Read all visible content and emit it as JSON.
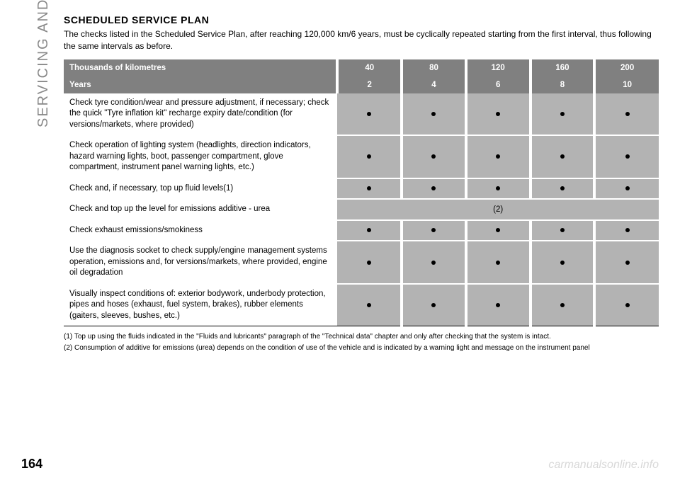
{
  "sidebar": "SERVICING AND CARE",
  "title": "SCHEDULED SERVICE PLAN",
  "intro": "The checks listed in the Scheduled Service Plan, after reaching 120,000 km/6 years, must be cyclically repeated starting from the first interval, thus following the same intervals as before.",
  "header": {
    "row1_label": "Thousands of kilometres",
    "row1_vals": [
      "40",
      "80",
      "120",
      "160",
      "200"
    ],
    "row2_label": "Years",
    "row2_vals": [
      "2",
      "4",
      "6",
      "8",
      "10"
    ]
  },
  "rows": [
    "Check tyre condition/wear and pressure adjustment, if necessary; check the quick \"Tyre inflation kit\" recharge expiry date/condition (for versions/markets, where provided)",
    "Check operation of lighting system (headlights, direction indicators, hazard warning lights, boot, passenger compartment, glove compartment, instrument panel warning lights, etc.)",
    "Check and, if necessary, top up fluid levels(1)"
  ],
  "urea_row": {
    "desc": "Check and top up the level for emissions additive - urea",
    "note": "(2)"
  },
  "rows2": [
    "Check exhaust emissions/smokiness",
    "Use the diagnosis socket to check supply/engine management systems operation, emissions and, for versions/markets, where provided, engine oil degradation",
    "Visually inspect conditions of: exterior bodywork, underbody protection, pipes and hoses (exhaust, fuel system, brakes), rubber elements (gaiters, sleeves, bushes, etc.)"
  ],
  "footnotes": [
    "(1) Top up using the fluids indicated in the \"Fluids and lubricants\" paragraph of the \"Technical data\" chapter and only after checking that the system is intact.",
    "(2) Consumption of additive for emissions (urea) depends on the condition of use of the vehicle and is indicated by a warning light and message on the instrument panel"
  ],
  "page_number": "164",
  "watermark": "carmanualsonline.info",
  "colors": {
    "header_bg": "#808080",
    "cell_bg": "#b3b3b3",
    "text": "#000000",
    "header_text": "#ffffff",
    "sidebar_text": "#888888",
    "watermark": "#d8d8d8"
  }
}
